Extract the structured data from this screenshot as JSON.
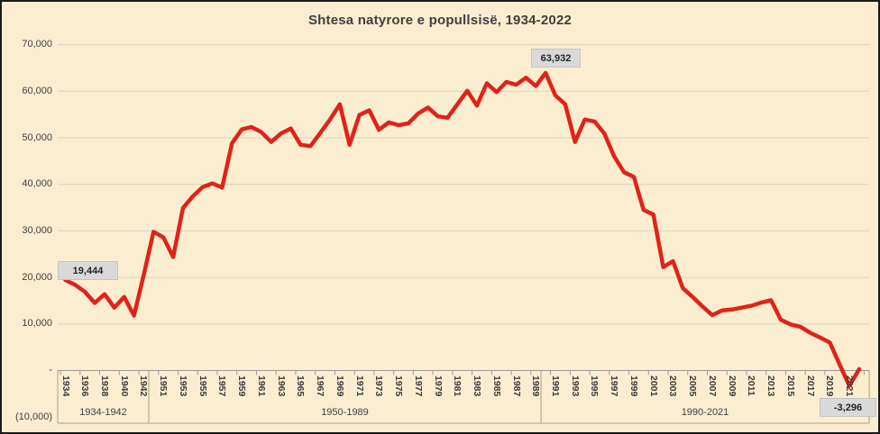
{
  "title": "Shtesa natyrore e popullsisë, 1934-2022",
  "y_axis": {
    "tick_labels": [
      "70,000",
      "60,000",
      "50,000",
      "40,000",
      "30,000",
      "20,000",
      "10,000",
      "-",
      "(10,000)"
    ],
    "tick_values": [
      70000,
      60000,
      50000,
      40000,
      30000,
      20000,
      10000,
      0,
      -10000
    ]
  },
  "x_axis": {
    "group_labels": [
      "1934-1942",
      "1950-1989",
      "1990-2021"
    ]
  },
  "annotations": {
    "first_value": "19,444",
    "max_value": "63,932",
    "min_value": "-3,296"
  },
  "colors": {
    "background": "#FBEED0",
    "line": "#E0231A",
    "grid": "#DCD1BC",
    "axis": "#9a9a9a",
    "band": "#ad9f85",
    "text": "#404040",
    "label_box": "#D9D9D9"
  },
  "chart_data": {
    "type": "line",
    "title": "Shtesa natyrore e popullsisë, 1934-2022",
    "xlabel": "",
    "ylabel": "",
    "ylim": [
      -10000,
      70000
    ],
    "grid": true,
    "legend": false,
    "x": [
      1934,
      1935,
      1936,
      1937,
      1938,
      1939,
      1940,
      1941,
      1942,
      1950,
      1951,
      1952,
      1953,
      1954,
      1955,
      1956,
      1957,
      1958,
      1959,
      1960,
      1961,
      1962,
      1963,
      1964,
      1965,
      1966,
      1967,
      1968,
      1969,
      1970,
      1971,
      1972,
      1973,
      1974,
      1975,
      1976,
      1977,
      1978,
      1979,
      1980,
      1981,
      1982,
      1983,
      1984,
      1985,
      1986,
      1987,
      1988,
      1989,
      1990,
      1991,
      1992,
      1993,
      1994,
      1995,
      1996,
      1997,
      1998,
      1999,
      2000,
      2001,
      2002,
      2003,
      2004,
      2005,
      2006,
      2007,
      2008,
      2009,
      2010,
      2011,
      2012,
      2013,
      2014,
      2015,
      2016,
      2017,
      2018,
      2019,
      2020,
      2021,
      2022
    ],
    "series": [
      {
        "name": "Shtesa natyrore e popullsisë",
        "values": [
          19444,
          18400,
          16900,
          14500,
          16400,
          13500,
          15800,
          11800,
          20600,
          29800,
          28600,
          24400,
          34900,
          37400,
          39400,
          40200,
          39300,
          48800,
          51800,
          52300,
          51200,
          49100,
          50900,
          52000,
          48500,
          48200,
          51000,
          53900,
          57200,
          48500,
          54900,
          55900,
          51700,
          53300,
          52700,
          53100,
          55200,
          56500,
          54600,
          54300,
          57200,
          60100,
          56900,
          61700,
          59800,
          62000,
          61400,
          62900,
          61100,
          63932,
          59100,
          57200,
          49100,
          53900,
          53500,
          50900,
          46000,
          42600,
          41600,
          34500,
          33500,
          22200,
          23500,
          17700,
          15800,
          13800,
          11900,
          12900,
          13100,
          13500,
          13900,
          14600,
          15100,
          10900,
          9900,
          9400,
          8100,
          7100,
          6000,
          1300,
          -3296,
          300
        ]
      }
    ],
    "annotated_points": [
      {
        "x": 1934,
        "label": "19,444"
      },
      {
        "x": 1990,
        "label": "63,932"
      },
      {
        "x": 2021,
        "label": "-3,296"
      }
    ]
  }
}
